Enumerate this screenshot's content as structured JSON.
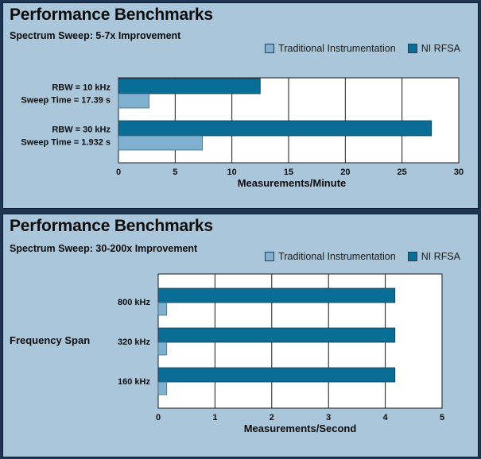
{
  "colors": {
    "traditional": "#7fb0d0",
    "ni": "#0a6d96",
    "panel_bg": "#a9c6da",
    "frame": "#1f3552"
  },
  "panels": [
    {
      "title": "Performance Benchmarks",
      "subtitle": "Spectrum Sweep: 5-7x Improvement",
      "legend": {
        "traditional": "Traditional Instrumentation",
        "ni": "NI RFSA"
      }
    },
    {
      "title": "Performance Benchmarks",
      "subtitle": "Spectrum Sweep: 30-200x Improvement",
      "legend": {
        "traditional": "Traditional Instrumentation",
        "ni": "NI RFSA"
      }
    }
  ],
  "chart_data": [
    {
      "type": "bar",
      "orientation": "horizontal",
      "title": "Performance Benchmarks",
      "subtitle": "Spectrum Sweep: 5-7x Improvement",
      "categories": [
        [
          "RBW = 10 kHz",
          "Sweep Time = 17.39 s"
        ],
        [
          "RBW = 30 kHz",
          "Sweep Time = 1.932 s"
        ]
      ],
      "series": [
        {
          "name": "NI RFSA",
          "values": [
            12.5,
            27.6
          ]
        },
        {
          "name": "Traditional Instrumentation",
          "values": [
            2.7,
            7.4
          ]
        }
      ],
      "xlabel": "Measurements/Minute",
      "ylabel": "",
      "xlim": [
        0,
        30
      ],
      "xticks": [
        0,
        5,
        10,
        15,
        20,
        25,
        30
      ],
      "grid": "vertical",
      "legend_position": "top-right"
    },
    {
      "type": "bar",
      "orientation": "horizontal",
      "title": "Performance Benchmarks",
      "subtitle": "Spectrum Sweep: 30-200x Improvement",
      "categories": [
        "800 kHz",
        "320 kHz",
        "160 kHz"
      ],
      "series": [
        {
          "name": "NI RFSA",
          "values": [
            4.17,
            4.17,
            4.17
          ]
        },
        {
          "name": "Traditional Instrumentation",
          "values": [
            0.15,
            0.15,
            0.15
          ]
        }
      ],
      "xlabel": "Measurements/Second",
      "ylabel": "Frequency Span",
      "xlim": [
        0,
        5
      ],
      "xticks": [
        0,
        1,
        2,
        3,
        4,
        5
      ],
      "grid": "vertical",
      "legend_position": "top-right"
    }
  ]
}
